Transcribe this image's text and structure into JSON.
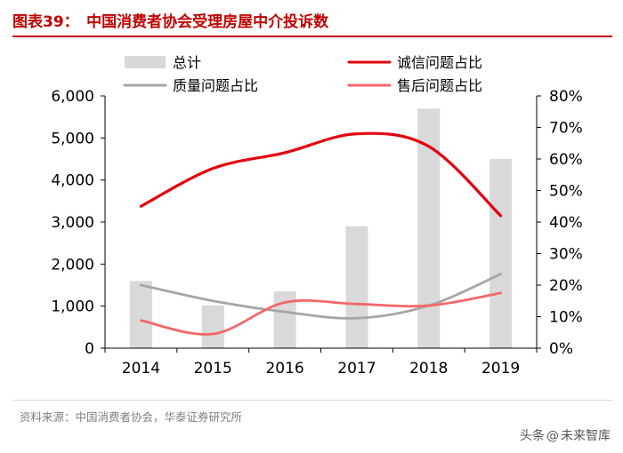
{
  "header": {
    "title": "图表39：　中国消费者协会受理房屋中介投诉数"
  },
  "source": "资料来源：中国消费者协会，华泰证券研究所",
  "watermark": {
    "left": "头条",
    "right": "未来智库"
  },
  "colors": {
    "accent": "#c00000",
    "bar": "#d9d9d9",
    "integrity": "#e3000f",
    "quality": "#a6a6a6",
    "after_sales": "#f4666b"
  },
  "chart_data": {
    "type": "bar",
    "categories": [
      "2014",
      "2015",
      "2016",
      "2017",
      "2018",
      "2019"
    ],
    "series": [
      {
        "name": "总计",
        "type": "bar",
        "axis": "left",
        "values": [
          1600,
          1020,
          1350,
          2900,
          5700,
          4500
        ]
      },
      {
        "name": "诚信问题占比",
        "type": "line",
        "axis": "right",
        "values": [
          45,
          57,
          62,
          68,
          64,
          42
        ]
      },
      {
        "name": "质量问题占比",
        "type": "line",
        "axis": "right",
        "values": [
          20,
          15,
          11.5,
          9.5,
          13.5,
          23.5
        ]
      },
      {
        "name": "售后问题占比",
        "type": "line",
        "axis": "right",
        "values": [
          8.8,
          4.5,
          14.5,
          14,
          13.5,
          17.5
        ]
      }
    ],
    "y_left": {
      "min": 0,
      "max": 6000,
      "ticks": [
        "0",
        "1,000",
        "2,000",
        "3,000",
        "4,000",
        "5,000",
        "6,000"
      ]
    },
    "y_right": {
      "min": 0,
      "max": 80,
      "ticks": [
        "0%",
        "10%",
        "20%",
        "30%",
        "40%",
        "50%",
        "60%",
        "70%",
        "80%"
      ]
    },
    "legend": {
      "placement": "top"
    },
    "grid": false
  }
}
